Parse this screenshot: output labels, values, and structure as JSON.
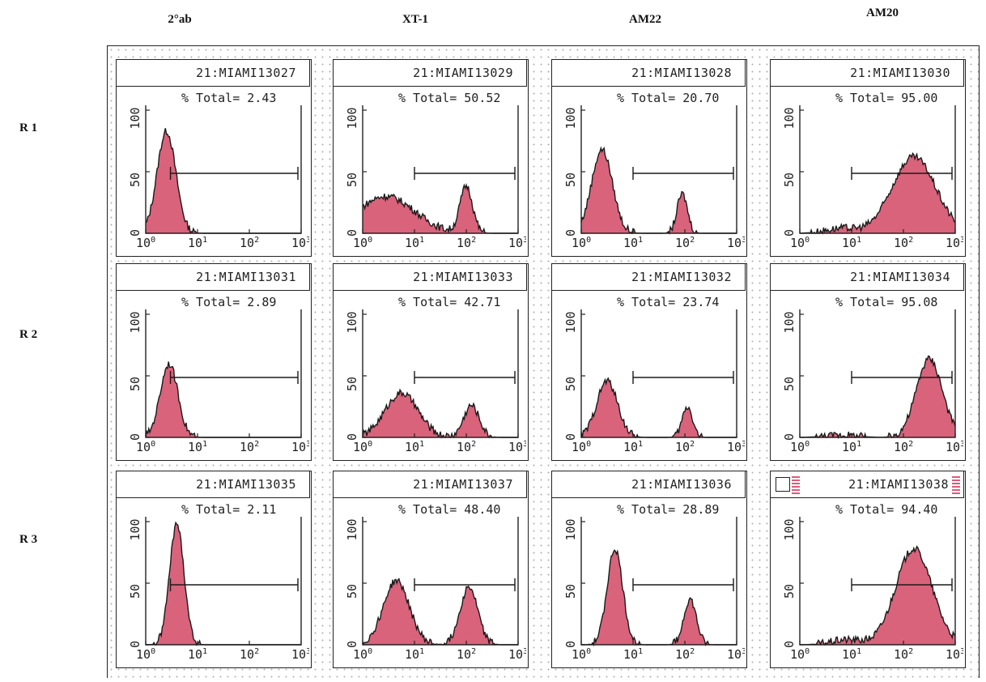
{
  "columns": [
    "2°ab",
    "XT-1",
    "AM22",
    "AM20"
  ],
  "rows": [
    "R 1",
    "R 2",
    "R 3"
  ],
  "stat_prefix": "% Total=",
  "chart_data": [
    {
      "type": "area",
      "title": "21:MIAMI13027",
      "stat": "2.43",
      "xscale": "log",
      "xlim": [
        1,
        1000
      ],
      "ylim": [
        0,
        100
      ],
      "yticks": [
        "0",
        "50",
        "100"
      ],
      "xticks": [
        "10",
        "10",
        "10",
        "10"
      ],
      "xtick_exponents": [
        "0",
        "1",
        "2",
        "3"
      ],
      "gate": [
        3,
        1000
      ],
      "peaks": [
        {
          "mu": 0.4,
          "sd": 0.18,
          "h": 83
        }
      ]
    },
    {
      "type": "area",
      "title": "21:MIAMI13029",
      "stat": "50.52",
      "xscale": "log",
      "xlim": [
        1,
        1000
      ],
      "ylim": [
        0,
        100
      ],
      "yticks": [
        "0",
        "50",
        "100"
      ],
      "xticks": [
        "10",
        "10",
        "10",
        "10"
      ],
      "xtick_exponents": [
        "0",
        "1",
        "2",
        "3"
      ],
      "gate": [
        10,
        1000
      ],
      "peaks": [
        {
          "mu": 0.45,
          "sd": 0.55,
          "h": 30
        },
        {
          "mu": 2.0,
          "sd": 0.12,
          "h": 38
        }
      ]
    },
    {
      "type": "area",
      "title": "21:MIAMI13028",
      "stat": "20.70",
      "xscale": "log",
      "xlim": [
        1,
        1000
      ],
      "ylim": [
        0,
        100
      ],
      "yticks": [
        "0",
        "50",
        "100"
      ],
      "xticks": [
        "10",
        "10",
        "10",
        "10"
      ],
      "xtick_exponents": [
        "0",
        "1",
        "2",
        "3"
      ],
      "gate": [
        10,
        1000
      ],
      "peaks": [
        {
          "mu": 0.4,
          "sd": 0.2,
          "h": 68
        },
        {
          "mu": 1.95,
          "sd": 0.1,
          "h": 32
        }
      ]
    },
    {
      "type": "area",
      "title": "21:MIAMI13030",
      "stat": "95.00",
      "xscale": "log",
      "xlim": [
        1,
        1000
      ],
      "ylim": [
        0,
        100
      ],
      "yticks": [
        "0",
        "50",
        "100"
      ],
      "xticks": [
        "10",
        "10",
        "10",
        "10"
      ],
      "xtick_exponents": [
        "0",
        "1",
        "2",
        "3"
      ],
      "gate": [
        10,
        1000
      ],
      "peaks": [
        {
          "mu": 2.2,
          "sd": 0.42,
          "h": 62
        },
        {
          "mu": 0.8,
          "sd": 0.3,
          "h": 4
        }
      ]
    },
    {
      "type": "area",
      "title": "21:MIAMI13031",
      "stat": "2.89",
      "xscale": "log",
      "xlim": [
        1,
        1000
      ],
      "ylim": [
        0,
        100
      ],
      "yticks": [
        "0",
        "50",
        "100"
      ],
      "xticks": [
        "10",
        "10",
        "10",
        "10"
      ],
      "xtick_exponents": [
        "0",
        "1",
        "2",
        "3"
      ],
      "gate": [
        3,
        1000
      ],
      "peaks": [
        {
          "mu": 0.45,
          "sd": 0.17,
          "h": 60
        }
      ]
    },
    {
      "type": "area",
      "title": "21:MIAMI13033",
      "stat": "42.71",
      "xscale": "log",
      "xlim": [
        1,
        1000
      ],
      "ylim": [
        0,
        100
      ],
      "yticks": [
        "0",
        "50",
        "100"
      ],
      "xticks": [
        "10",
        "10",
        "10",
        "10"
      ],
      "xtick_exponents": [
        "0",
        "1",
        "2",
        "3"
      ],
      "gate": [
        10,
        1000
      ],
      "peaks": [
        {
          "mu": 0.75,
          "sd": 0.32,
          "h": 36
        },
        {
          "mu": 2.1,
          "sd": 0.15,
          "h": 26
        }
      ]
    },
    {
      "type": "area",
      "title": "21:MIAMI13032",
      "stat": "23.74",
      "xscale": "log",
      "xlim": [
        1,
        1000
      ],
      "ylim": [
        0,
        100
      ],
      "yticks": [
        "0",
        "50",
        "100"
      ],
      "xticks": [
        "10",
        "10",
        "10",
        "10"
      ],
      "xtick_exponents": [
        "0",
        "1",
        "2",
        "3"
      ],
      "gate": [
        10,
        1000
      ],
      "peaks": [
        {
          "mu": 0.5,
          "sd": 0.2,
          "h": 46
        },
        {
          "mu": 2.05,
          "sd": 0.1,
          "h": 25
        }
      ]
    },
    {
      "type": "area",
      "title": "21:MIAMI13034",
      "stat": "95.08",
      "xscale": "log",
      "xlim": [
        1,
        1000
      ],
      "ylim": [
        0,
        100
      ],
      "yticks": [
        "0",
        "50",
        "100"
      ],
      "xticks": [
        "10",
        "10",
        "10",
        "10"
      ],
      "xtick_exponents": [
        "0",
        "1",
        "2",
        "3"
      ],
      "gate": [
        10,
        1000
      ],
      "peaks": [
        {
          "mu": 2.5,
          "sd": 0.25,
          "h": 64
        },
        {
          "mu": 0.8,
          "sd": 0.3,
          "h": 2
        }
      ]
    },
    {
      "type": "area",
      "title": "21:MIAMI13035",
      "stat": "2.11",
      "xscale": "log",
      "xlim": [
        1,
        1000
      ],
      "ylim": [
        0,
        100
      ],
      "yticks": [
        "0",
        "50",
        "100"
      ],
      "xticks": [
        "10",
        "10",
        "10",
        "10"
      ],
      "xtick_exponents": [
        "0",
        "1",
        "2",
        "3"
      ],
      "gate": [
        3,
        1000
      ],
      "peaks": [
        {
          "mu": 0.6,
          "sd": 0.14,
          "h": 98
        }
      ]
    },
    {
      "type": "area",
      "title": "21:MIAMI13037",
      "stat": "48.40",
      "xscale": "log",
      "xlim": [
        1,
        1000
      ],
      "ylim": [
        0,
        100
      ],
      "yticks": [
        "0",
        "50",
        "100"
      ],
      "xticks": [
        "10",
        "10",
        "10",
        "10"
      ],
      "xtick_exponents": [
        "0",
        "1",
        "2",
        "3"
      ],
      "gate": [
        10,
        1000
      ],
      "peaks": [
        {
          "mu": 0.65,
          "sd": 0.25,
          "h": 52
        },
        {
          "mu": 2.05,
          "sd": 0.17,
          "h": 47
        }
      ]
    },
    {
      "type": "area",
      "title": "21:MIAMI13036",
      "stat": "28.89",
      "xscale": "log",
      "xlim": [
        1,
        1000
      ],
      "ylim": [
        0,
        100
      ],
      "yticks": [
        "0",
        "50",
        "100"
      ],
      "xticks": [
        "10",
        "10",
        "10",
        "10"
      ],
      "xtick_exponents": [
        "0",
        "1",
        "2",
        "3"
      ],
      "gate": [
        10,
        1000
      ],
      "peaks": [
        {
          "mu": 0.65,
          "sd": 0.15,
          "h": 78
        },
        {
          "mu": 2.1,
          "sd": 0.12,
          "h": 37
        }
      ]
    },
    {
      "type": "area",
      "title": "21:MIAMI13038",
      "stat": "94.40",
      "xscale": "log",
      "xlim": [
        1,
        1000
      ],
      "ylim": [
        0,
        100
      ],
      "yticks": [
        "0",
        "50",
        "100"
      ],
      "xticks": [
        "10",
        "10",
        "10",
        "10"
      ],
      "xtick_exponents": [
        "0",
        "1",
        "2",
        "3"
      ],
      "gate": [
        10,
        1000
      ],
      "peaks": [
        {
          "mu": 2.2,
          "sd": 0.35,
          "h": 78
        },
        {
          "mu": 0.9,
          "sd": 0.3,
          "h": 4
        }
      ],
      "selected": true
    }
  ],
  "colors": {
    "fill": "#d9637a",
    "line": "#1a1a1a",
    "frame": "#222222"
  }
}
